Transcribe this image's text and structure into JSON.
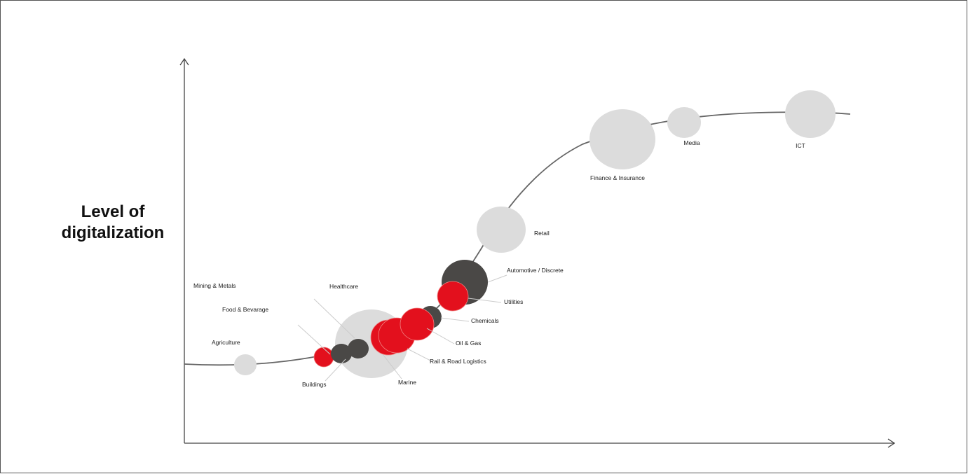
{
  "y_axis_title": [
    "Level of",
    "digitalization"
  ],
  "colors": {
    "axis": "#444444",
    "curve": "#666666",
    "leader": "#cccccc",
    "light": "#dcdcdc",
    "dark": "#4a4846",
    "red": "#e3101d"
  },
  "sectors": [
    {
      "key": "agriculture",
      "label": "Agriculture",
      "tone": "light"
    },
    {
      "key": "food_beverage",
      "label": "Food & Bevarage",
      "tone": "red"
    },
    {
      "key": "mining_metals",
      "label": "Mining & Metals",
      "tone": "dark"
    },
    {
      "key": "buildings",
      "label": "Buildings",
      "tone": "dark"
    },
    {
      "key": "healthcare",
      "label": "Healthcare",
      "tone": "light"
    },
    {
      "key": "marine",
      "label": "Marine",
      "tone": "red"
    },
    {
      "key": "rail_road",
      "label": "Rail & Road Logistics",
      "tone": "red"
    },
    {
      "key": "oil_gas",
      "label": "Oil & Gas",
      "tone": "red"
    },
    {
      "key": "chemicals",
      "label": "Chemicals",
      "tone": "dark"
    },
    {
      "key": "utilities",
      "label": "Utilities",
      "tone": "red"
    },
    {
      "key": "automotive",
      "label": "Automotive / Discrete",
      "tone": "dark"
    },
    {
      "key": "retail",
      "label": "Retail",
      "tone": "light"
    },
    {
      "key": "finance",
      "label": "Finance & Insurance",
      "tone": "light"
    },
    {
      "key": "media",
      "label": "Media",
      "tone": "light"
    },
    {
      "key": "ict",
      "label": "ICT",
      "tone": "light"
    }
  ]
}
